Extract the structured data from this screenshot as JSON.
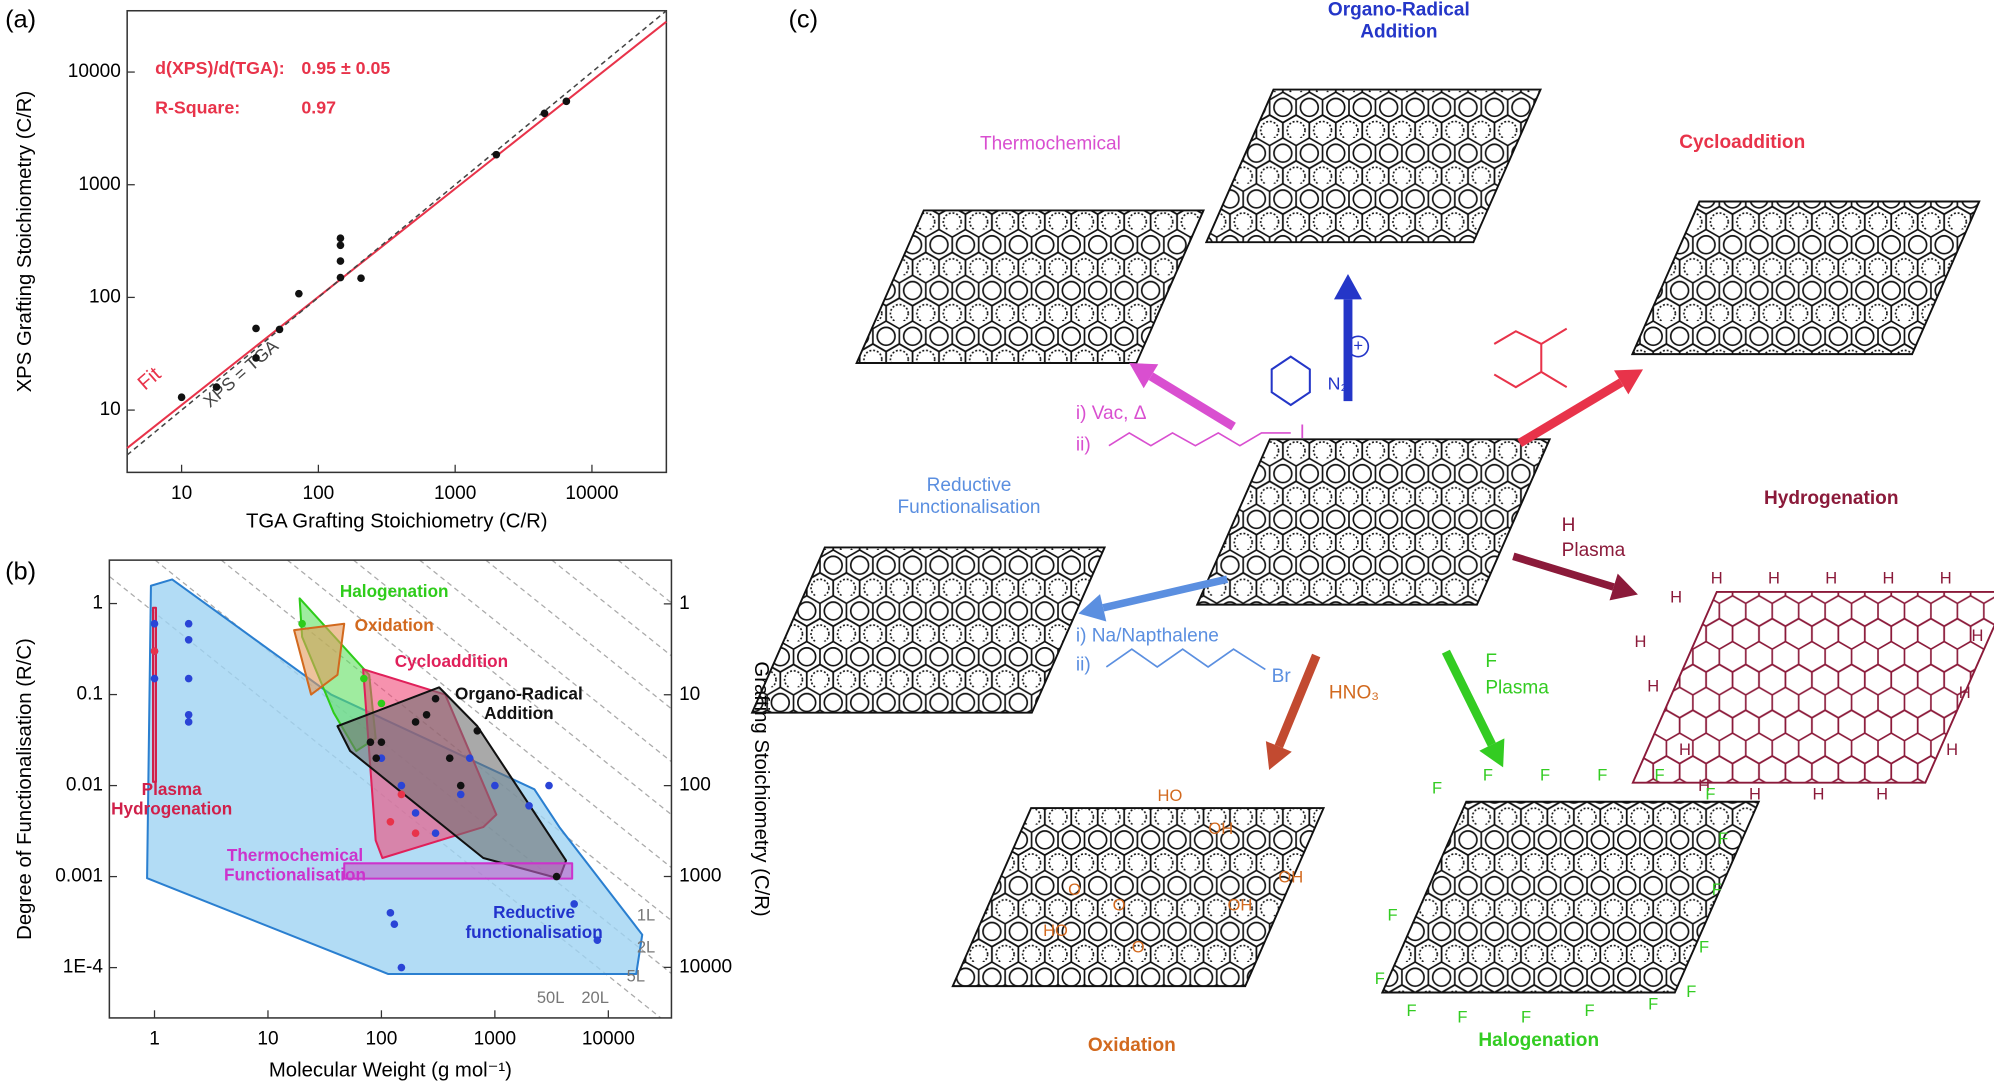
{
  "panel_labels": [
    "(a)",
    "(b)",
    "(c)"
  ],
  "chart_data": [
    {
      "type": "scatter",
      "x_label": "TGA Grafting Stoichiometry (C/R)",
      "y_label": "XPS Grafting Stoichiometry (C/R)",
      "log_x": true,
      "log_y": true,
      "xlim": [
        4,
        35000
      ],
      "ylim": [
        2.8,
        35000
      ],
      "xticks": [
        10,
        100,
        1000,
        10000
      ],
      "yticks": [
        10,
        100,
        1000,
        10000
      ],
      "annotations": [
        "d(XPS)/d(TGA):",
        "0.95 ± 0.05",
        "R-Square:",
        "0.97"
      ],
      "annotation_color": "#e8334a",
      "points": {
        "color": "#111111",
        "x": [
          10,
          18,
          35,
          35,
          52,
          72,
          145,
          145,
          145,
          145,
          205,
          2000,
          4500,
          6500
        ],
        "y": [
          13,
          16,
          29,
          53,
          52,
          108,
          150,
          210,
          290,
          335,
          148,
          1850,
          4300,
          5500
        ]
      },
      "lines": [
        {
          "name": "Fit",
          "color": "#e8334a",
          "dash": false,
          "x": [
            4,
            35000
          ],
          "y": [
            4.6,
            28000
          ]
        },
        {
          "name": "XPS = TGA",
          "color": "#444444",
          "dash": true,
          "x": [
            4,
            35000
          ],
          "y": [
            4,
            35000
          ]
        }
      ]
    },
    {
      "type": "scatter",
      "x_label": "Molecular Weight (g mol⁻¹)",
      "y_label": "Degree of Functionalisation (R/C)",
      "y2_label": "Grafting Stoichiometry (C/R)",
      "log_x": true,
      "log_y": true,
      "xlim": [
        0.4,
        36000
      ],
      "ylim": [
        2.8e-05,
        3
      ],
      "y2lim": [
        36000,
        0.33
      ],
      "xticks": [
        1,
        10,
        100,
        1000,
        10000
      ],
      "yticks": [
        {
          "value": 0.0001,
          "label": "1E-4"
        },
        0.001,
        0.01,
        0.1,
        1
      ],
      "y2ticks": [
        1,
        10,
        100,
        1000,
        10000
      ],
      "guide_labels": [
        "1L",
        "2L",
        "5L",
        "20L",
        "50L"
      ],
      "regions": [
        {
          "name": "Reductive functionalisation",
          "color": "#2a7fd0",
          "fill": "#9fd3f2",
          "x": [
            0.93,
            1.43,
            36,
            2230,
            3700,
            19900,
            17600,
            115,
            0.86
          ],
          "y": [
            1.57,
            1.84,
            0.1,
            0.0091,
            0.0035,
            0.00023,
            8.5e-05,
            8.5e-05,
            0.00096
          ]
        },
        {
          "name": "Halogenation",
          "color": "#2ecc1a",
          "fill": "#5fe05f",
          "x": [
            19,
            78,
            89,
            60,
            38,
            20
          ],
          "y": [
            1.14,
            0.165,
            0.033,
            0.024,
            0.063,
            0.43
          ]
        },
        {
          "name": "Oxidation",
          "color": "#d2691e",
          "fill": "#e39a5a",
          "x": [
            17,
            47,
            41,
            24
          ],
          "y": [
            0.51,
            0.6,
            0.165,
            0.1
          ]
        },
        {
          "name": "Cycloaddition",
          "color": "#e0205a",
          "fill": "#f04a78",
          "x": [
            69,
            365,
            1030,
            790,
            102,
            89
          ],
          "y": [
            0.19,
            0.1,
            0.0048,
            0.0035,
            0.0016,
            0.0025
          ]
        },
        {
          "name": "Organo-Radical Addition",
          "color": "#111111",
          "fill": "#707070",
          "x": [
            41,
            323,
            700,
            4240,
            3700,
            790,
            53
          ],
          "y": [
            0.045,
            0.12,
            0.045,
            0.0015,
            0.00095,
            0.0016,
            0.024
          ]
        },
        {
          "name": "Plasma Hydrogenation",
          "color": "#d0204a",
          "fill": "#f07090",
          "x": [
            0.97,
            1.03,
            1.03,
            0.97
          ],
          "y": [
            0.9,
            0.9,
            0.011,
            0.011
          ]
        },
        {
          "name": "Thermochemical Functionalisation",
          "color": "#cc33cc",
          "fill": "#c060c8",
          "x": [
            47,
            4800,
            4800,
            47
          ],
          "y": [
            0.0014,
            0.0014,
            0.00095,
            0.00095
          ]
        }
      ],
      "point_groups": [
        {
          "color": "#2a44d6",
          "x": [
            1,
            1,
            1,
            2,
            2,
            2,
            2,
            2,
            100,
            150,
            200,
            300,
            1000,
            2000,
            3000,
            5000,
            8000,
            150,
            120,
            130,
            500,
            600
          ],
          "y": [
            0.6,
            0.3,
            0.15,
            0.6,
            0.4,
            0.15,
            0.06,
            0.05,
            0.02,
            0.01,
            0.005,
            0.003,
            0.01,
            0.006,
            0.01,
            0.0005,
            0.0002,
            0.0001,
            0.0004,
            0.0003,
            0.008,
            0.02
          ]
        },
        {
          "color": "#111111",
          "x": [
            80,
            100,
            200,
            300,
            400,
            500,
            700,
            3500,
            90,
            250
          ],
          "y": [
            0.03,
            0.03,
            0.05,
            0.09,
            0.02,
            0.01,
            0.04,
            0.001,
            0.02,
            0.06
          ]
        },
        {
          "color": "#e8334a",
          "x": [
            120,
            200,
            150,
            1
          ],
          "y": [
            0.004,
            0.003,
            0.008,
            0.3
          ]
        },
        {
          "color": "#2ecc1a",
          "x": [
            70,
            100,
            20
          ],
          "y": [
            0.15,
            0.08,
            0.6
          ]
        }
      ]
    }
  ],
  "diagram": {
    "methods": [
      {
        "name": "Organo-Radical Addition",
        "color": "#2436c8"
      },
      {
        "name": "Thermochemical",
        "color": "#d94fd0"
      },
      {
        "name": "Cycloaddition",
        "color": "#e8334a"
      },
      {
        "name": "Hydrogenation",
        "color": "#8b1a3a"
      },
      {
        "name": "Reductive Functionalisation",
        "color": "#5b8fe0"
      },
      {
        "name": "Oxidation",
        "color": "#d2691e"
      },
      {
        "name": "Halogenation",
        "color": "#33cc22"
      }
    ],
    "reagents": {
      "thermochemical": [
        "i) Vac, Δ",
        "ii)",
        "I"
      ],
      "reductive": [
        "i) Na/Napthalene",
        "ii)",
        "Br"
      ],
      "hydrogenation": [
        "H",
        "Plasma"
      ],
      "halogenation": [
        "F",
        "Plasma"
      ],
      "oxidation": [
        "HNO₃"
      ],
      "organo_radical": [
        "N₂",
        "+"
      ]
    },
    "atoms": [
      "H",
      "F",
      "O",
      "HO",
      "OH"
    ]
  }
}
